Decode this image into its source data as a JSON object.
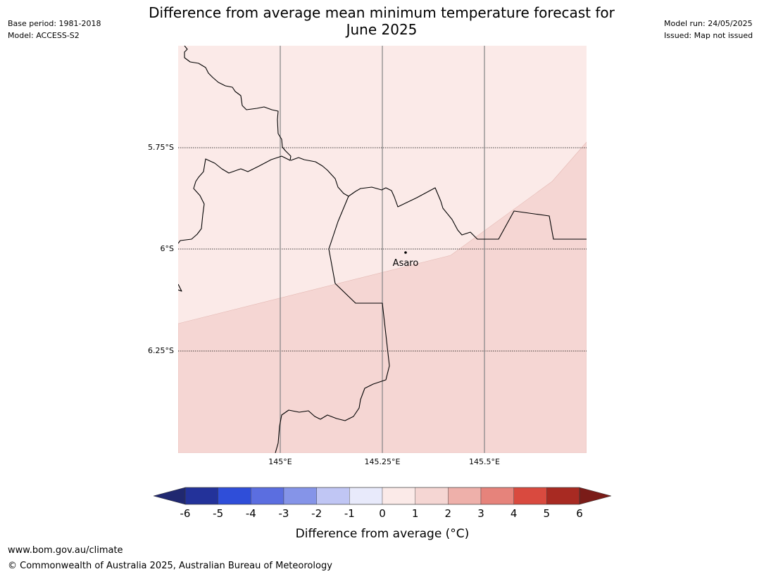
{
  "header": {
    "title": "Difference from average mean minimum temperature forecast for June 2025",
    "base_period": "Base period: 1981-2018",
    "model": "Model: ACCESS-S2",
    "model_run": "Model run: 24/05/2025",
    "issued": "Issued: Map not issued"
  },
  "map": {
    "lat_labels": [
      "5.75°S",
      "6°S",
      "6.25°S"
    ],
    "lon_labels": [
      "145°E",
      "145.25°E",
      "145.5°E"
    ],
    "place_name": "Asaro",
    "region_colors": {
      "zero_to_one": "#fbeae8",
      "one_to_two": "#f5d6d3"
    }
  },
  "colorbar": {
    "label": "Difference from average (°C)",
    "ticks": [
      "-6",
      "-5",
      "-4",
      "-3",
      "-2",
      "-1",
      "0",
      "1",
      "2",
      "3",
      "4",
      "5",
      "6"
    ],
    "colors": [
      "#23329a",
      "#2f4ed9",
      "#5b6ee0",
      "#8594e8",
      "#c0c6f4",
      "#e8eafb",
      "#fbeae8",
      "#f5d6d3",
      "#eeb0aa",
      "#e6837b",
      "#d94a3f",
      "#a82a22"
    ],
    "extend_low_color": "#202870",
    "extend_high_color": "#7a1c18"
  },
  "footer": {
    "url": "www.bom.gov.au/climate",
    "copyright": "© Commonwealth of Australia 2025, Australian Bureau of Meteorology"
  }
}
